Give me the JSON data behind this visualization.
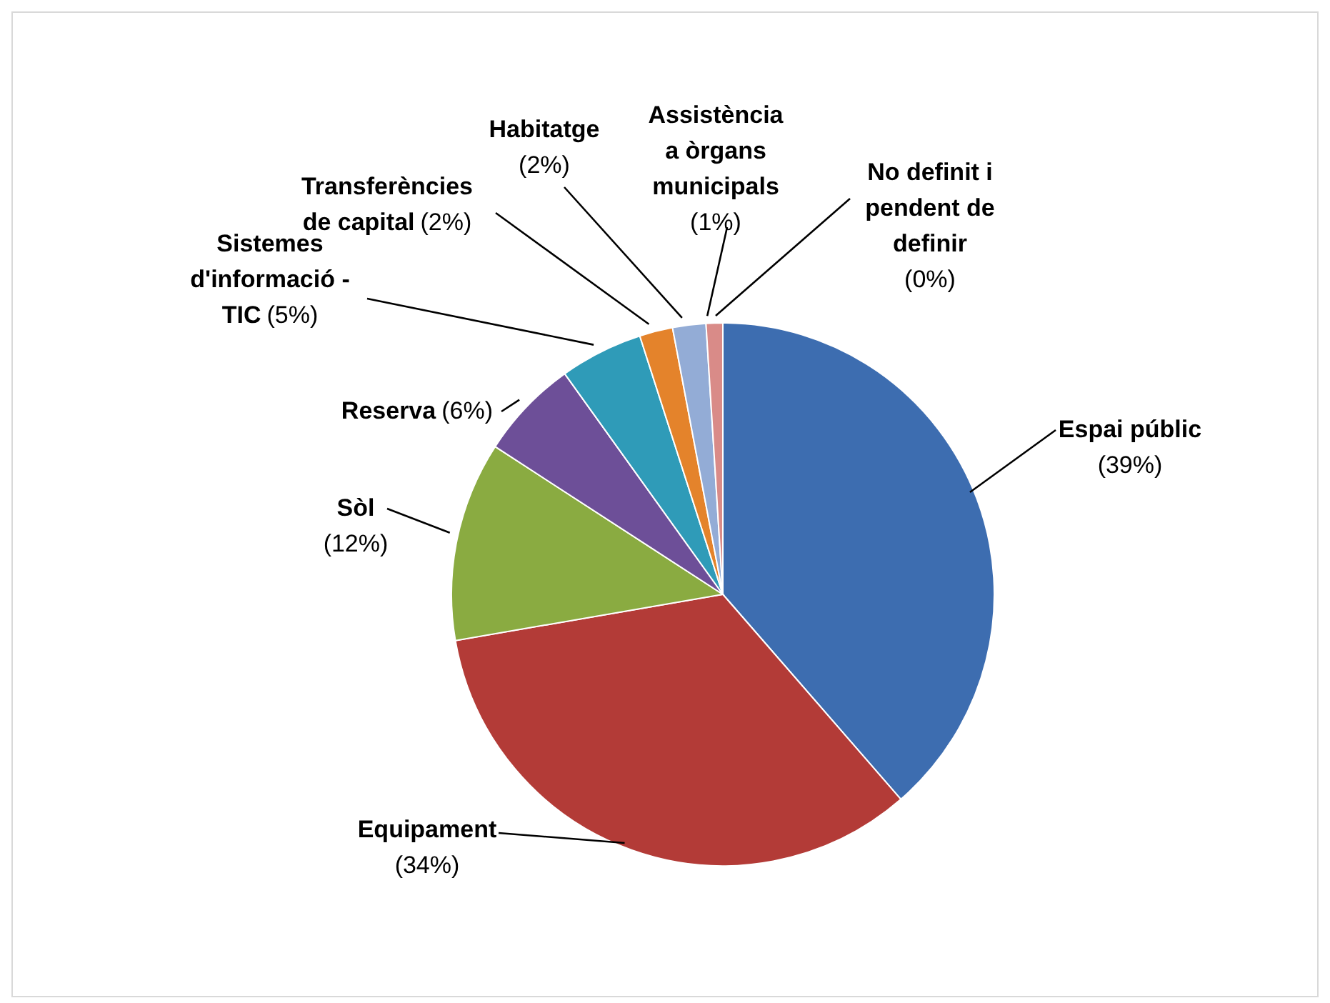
{
  "chart_data": {
    "type": "pie",
    "categories": [
      "Espai públic",
      "Equipament",
      "Sòl",
      "Reserva",
      "Sistemes d'informació - TIC",
      "Transferències de capital",
      "Habitatge",
      "Assistència a òrgans municipals",
      "No definit i pendent de definir"
    ],
    "values": [
      39,
      34,
      12,
      6,
      5,
      2,
      2,
      1,
      0
    ],
    "value_labels": [
      "(39%)",
      "(34%)",
      "(12%)",
      "(6%)",
      "(5%)",
      "(2%)",
      "(2%)",
      "(1%)",
      "(0%)"
    ],
    "colors": [
      "#3d6db0",
      "#b33b37",
      "#8aab41",
      "#6d4f98",
      "#2f9bb8",
      "#e4832b",
      "#93acd6",
      "#d98b88",
      "#c8b6a0"
    ],
    "legend": false
  }
}
